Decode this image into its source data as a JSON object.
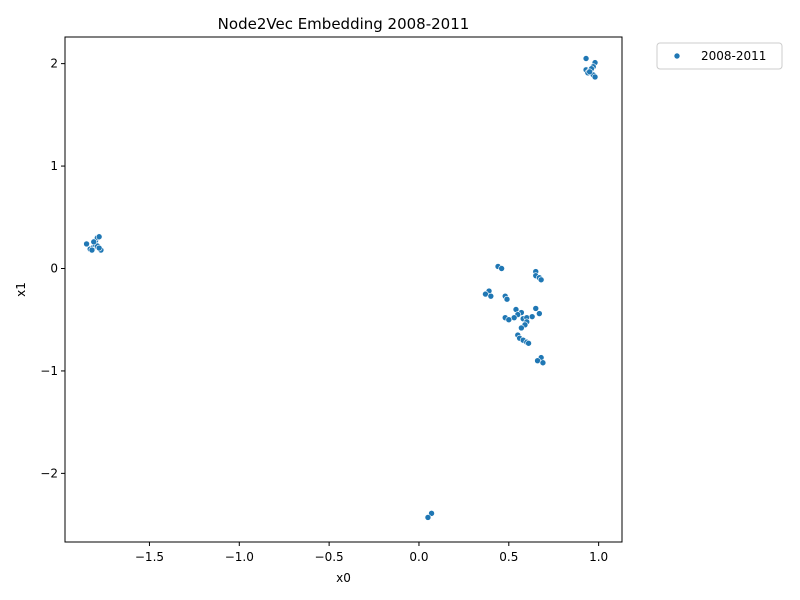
{
  "chart_data": {
    "type": "scatter",
    "title": "Node2Vec Embedding 2008-2011",
    "xlabel": "x0",
    "ylabel": "x1",
    "xlim": [
      -1.97,
      1.13
    ],
    "ylim": [
      -2.67,
      2.26
    ],
    "xticks": [
      -1.5,
      -1.0,
      -0.5,
      0.0,
      0.5,
      1.0
    ],
    "xtick_labels": [
      "−1.5",
      "−1.0",
      "−0.5",
      "0.0",
      "0.5",
      "1.0"
    ],
    "yticks": [
      -2,
      -1,
      0,
      1,
      2
    ],
    "ytick_labels": [
      "−2",
      "−1",
      "0",
      "1",
      "2"
    ],
    "grid": false,
    "legend_position": "outside-upper-right",
    "series": [
      {
        "name": "2008-2011",
        "color": "#1f77b4",
        "points": [
          [
            0.93,
            2.05
          ],
          [
            0.98,
            2.01
          ],
          [
            0.97,
            1.97
          ],
          [
            0.93,
            1.94
          ],
          [
            0.95,
            1.93
          ],
          [
            0.96,
            1.95
          ],
          [
            0.94,
            1.91
          ],
          [
            0.97,
            1.89
          ],
          [
            0.98,
            1.87
          ],
          [
            0.95,
            1.92
          ],
          [
            -1.85,
            0.24
          ],
          [
            -1.83,
            0.19
          ],
          [
            -1.81,
            0.21
          ],
          [
            -1.82,
            0.18
          ],
          [
            -1.8,
            0.27
          ],
          [
            -1.79,
            0.3
          ],
          [
            -1.78,
            0.31
          ],
          [
            -1.8,
            0.23
          ],
          [
            -1.79,
            0.22
          ],
          [
            -1.77,
            0.18
          ],
          [
            -1.81,
            0.26
          ],
          [
            -1.78,
            0.2
          ],
          [
            0.44,
            0.02
          ],
          [
            0.46,
            0.0
          ],
          [
            0.65,
            -0.03
          ],
          [
            0.65,
            -0.07
          ],
          [
            0.67,
            -0.09
          ],
          [
            0.68,
            -0.11
          ],
          [
            0.39,
            -0.22
          ],
          [
            0.37,
            -0.25
          ],
          [
            0.4,
            -0.27
          ],
          [
            0.48,
            -0.27
          ],
          [
            0.49,
            -0.3
          ],
          [
            0.54,
            -0.4
          ],
          [
            0.65,
            -0.39
          ],
          [
            0.67,
            -0.44
          ],
          [
            0.57,
            -0.43
          ],
          [
            0.55,
            -0.45
          ],
          [
            0.53,
            -0.48
          ],
          [
            0.58,
            -0.49
          ],
          [
            0.6,
            -0.48
          ],
          [
            0.63,
            -0.47
          ],
          [
            0.48,
            -0.48
          ],
          [
            0.5,
            -0.5
          ],
          [
            0.6,
            -0.52
          ],
          [
            0.59,
            -0.55
          ],
          [
            0.57,
            -0.58
          ],
          [
            0.55,
            -0.65
          ],
          [
            0.56,
            -0.68
          ],
          [
            0.58,
            -0.7
          ],
          [
            0.6,
            -0.72
          ],
          [
            0.61,
            -0.73
          ],
          [
            0.68,
            -0.87
          ],
          [
            0.66,
            -0.9
          ],
          [
            0.69,
            -0.92
          ],
          [
            0.07,
            -2.39
          ],
          [
            0.05,
            -2.43
          ]
        ]
      }
    ]
  }
}
